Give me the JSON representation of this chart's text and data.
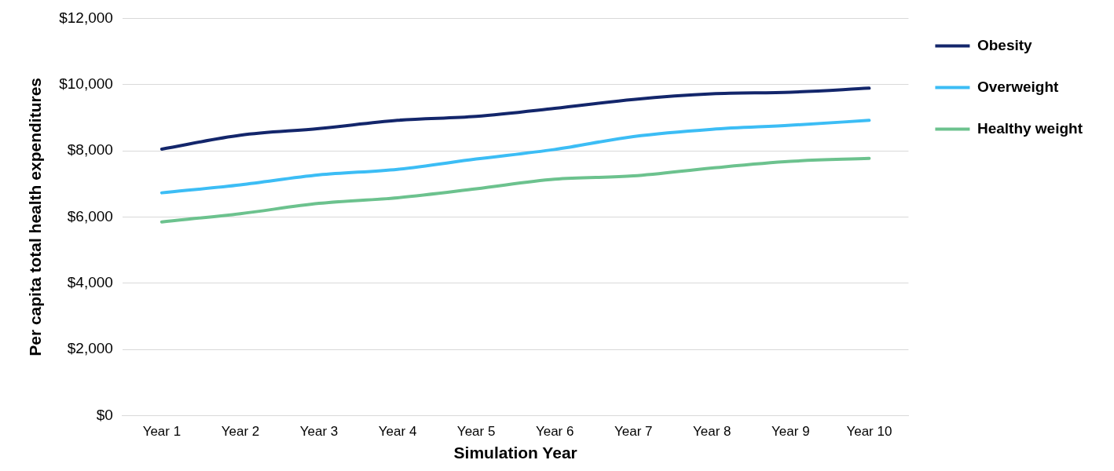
{
  "chart_data": {
    "type": "line",
    "xlabel": "Simulation Year",
    "ylabel": "Per capita total health expenditures",
    "categories": [
      "Year 1",
      "Year 2",
      "Year 3",
      "Year 4",
      "Year 5",
      "Year 6",
      "Year 7",
      "Year 8",
      "Year 9",
      "Year 10"
    ],
    "series": [
      {
        "name": "Obesity",
        "color": "#13266b",
        "values": [
          8050,
          8470,
          8670,
          8920,
          9040,
          9280,
          9550,
          9720,
          9770,
          9890
        ]
      },
      {
        "name": "Overweight",
        "color": "#3cbdf5",
        "values": [
          6730,
          6970,
          7270,
          7440,
          7750,
          8040,
          8430,
          8650,
          8770,
          8920
        ]
      },
      {
        "name": "Healthy weight",
        "color": "#6cc28e",
        "values": [
          5850,
          6100,
          6410,
          6580,
          6850,
          7140,
          7240,
          7480,
          7680,
          7770
        ]
      }
    ],
    "ylim": [
      0,
      12000
    ],
    "yticks": [
      {
        "value": 0,
        "label": "$0"
      },
      {
        "value": 2000,
        "label": "$2,000"
      },
      {
        "value": 4000,
        "label": "$4,000"
      },
      {
        "value": 6000,
        "label": "$6,000"
      },
      {
        "value": 8000,
        "label": "$8,000"
      },
      {
        "value": 10000,
        "label": "$10,000"
      },
      {
        "value": 12000,
        "label": "$12,000"
      }
    ],
    "grid": "y",
    "legend": "right",
    "marker": "none",
    "line_style": "solid"
  }
}
